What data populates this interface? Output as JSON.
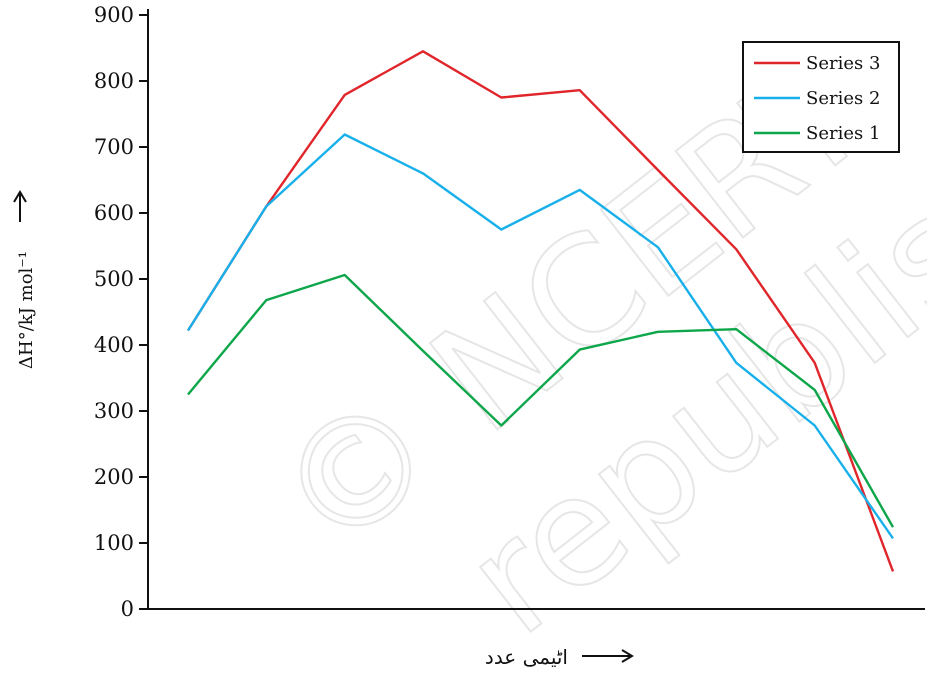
{
  "watermark": {
    "line1": "© NCERT",
    "line2": "republished"
  },
  "chart_data": {
    "type": "line",
    "ylabel": "ΔH°/kJ mol⁻¹",
    "xlabel": "اٹیمی عدد",
    "ylim": [
      0,
      900
    ],
    "yticks": [
      0,
      100,
      200,
      300,
      400,
      500,
      600,
      700,
      800,
      900
    ],
    "x": [
      1,
      2,
      3,
      4,
      5,
      6,
      7,
      8,
      9,
      10
    ],
    "grid": false,
    "legend_position": "top-right",
    "series": [
      {
        "name": "Series 3",
        "color": "#e0262b",
        "values": [
          422,
          610,
          779,
          845,
          775,
          786,
          665,
          545,
          373,
          57
        ]
      },
      {
        "name": "Series 2",
        "color": "#18b0ea",
        "values": [
          422,
          610,
          719,
          660,
          575,
          635,
          548,
          373,
          278,
          107
        ]
      },
      {
        "name": "Series 1",
        "color": "#0da64a",
        "values": [
          325,
          468,
          506,
          391,
          278,
          393,
          420,
          424,
          332,
          124
        ]
      }
    ]
  }
}
